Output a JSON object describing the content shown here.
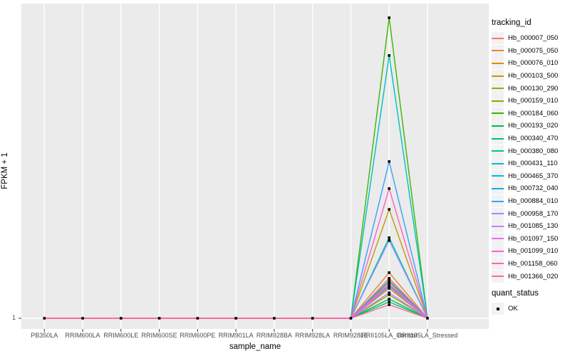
{
  "axes": {
    "x": {
      "title": "sample_name"
    },
    "y": {
      "title": "FPKM + 1",
      "tick_label": "1"
    }
  },
  "legend": {
    "tracking_title": "tracking_id",
    "quant_title": "quant_status",
    "quant_items": [
      {
        "label": "OK",
        "marker": "black-square"
      }
    ]
  },
  "chart_data": {
    "type": "line",
    "title": "",
    "xlabel": "sample_name",
    "ylabel": "FPKM + 1",
    "y_scale": "log-like; only labeled tick is 1 at the baseline",
    "grid": "white vertical gridline per category plus horizontal line at y=1 on gray panel",
    "legend_position": "right",
    "style": {
      "panel_bg": "#EBEBEB",
      "grid_color": "#FFFFFF",
      "point_color": "#000000",
      "tick_color": "#333333",
      "tick_text_color": "#4D4D4D"
    },
    "categories": [
      "PB350LA",
      "RRIM600LA",
      "RRIM600LE",
      "RRIM600SE",
      "RRIM600PE",
      "RRIM901LA",
      "RRIM928BA",
      "RRIM928LA",
      "RRIM928LE",
      "RRII105LA_Control",
      "RRII105LA_Stressed"
    ],
    "peak_category": "RRII105LA_Control",
    "baseline_value": 1,
    "note": "Every series sits at FPKM+1 = 1 for all samples except RRII105LA_Control, where it spikes; peak_frac is the spike height as a fraction of full panel height (actual FPKM values are not labeled in the image). quant_status of every point is OK (black square markers).",
    "series": [
      {
        "name": "Hb_000007_050",
        "color": "#F8766D",
        "peak_frac": 0.127
      },
      {
        "name": "Hb_000075_050",
        "color": "#EA8331",
        "peak_frac": 0.145
      },
      {
        "name": "Hb_000076_010",
        "color": "#D89000",
        "peak_frac": 0.115
      },
      {
        "name": "Hb_000103_500",
        "color": "#C09B00",
        "peak_frac": 0.346
      },
      {
        "name": "Hb_000130_290",
        "color": "#A3A500",
        "peak_frac": 0.095
      },
      {
        "name": "Hb_000159_010",
        "color": "#7CAE00",
        "peak_frac": 0.075
      },
      {
        "name": "Hb_000184_060",
        "color": "#39B600",
        "peak_frac": 0.955
      },
      {
        "name": "Hb_000193_020",
        "color": "#00BB4E",
        "peak_frac": 0.061
      },
      {
        "name": "Hb_000340_470",
        "color": "#00BF7D",
        "peak_frac": 0.052
      },
      {
        "name": "Hb_000380_080",
        "color": "#00C1A3",
        "peak_frac": 0.256
      },
      {
        "name": "Hb_000431_110",
        "color": "#00BFC4",
        "peak_frac": 0.835
      },
      {
        "name": "Hb_000465_370",
        "color": "#00BAE0",
        "peak_frac": 0.104
      },
      {
        "name": "Hb_000732_040",
        "color": "#00B0F6",
        "peak_frac": 0.12
      },
      {
        "name": "Hb_000884_010",
        "color": "#35A2FF",
        "peak_frac": 0.498
      },
      {
        "name": "Hb_000958_170",
        "color": "#9590FF",
        "peak_frac": 0.247
      },
      {
        "name": "Hb_001085_130",
        "color": "#C77CFF",
        "peak_frac": 0.081
      },
      {
        "name": "Hb_001097_150",
        "color": "#E76BF3",
        "peak_frac": 0.109
      },
      {
        "name": "Hb_001099_010",
        "color": "#FA62DB",
        "peak_frac": 0.1
      },
      {
        "name": "Hb_001158_060",
        "color": "#FF62BC",
        "peak_frac": 0.412
      },
      {
        "name": "Hb_001366_020",
        "color": "#FF6A98",
        "peak_frac": 0.043
      }
    ]
  }
}
